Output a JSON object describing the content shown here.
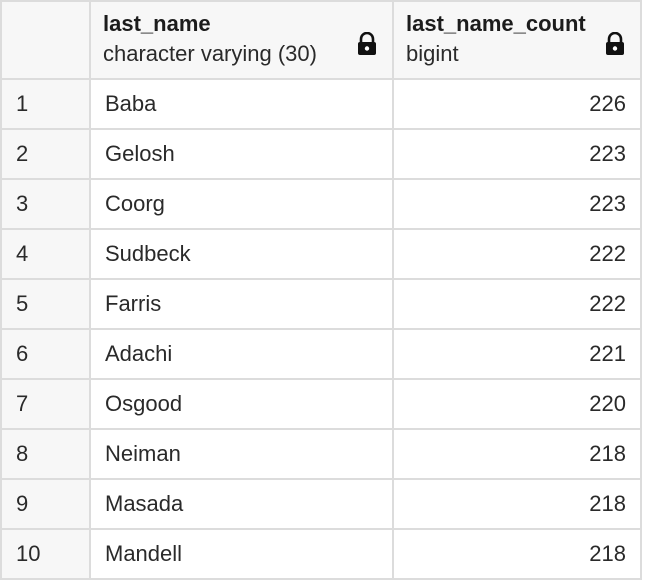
{
  "columns": [
    {
      "name": "last_name",
      "type": "character varying (30)",
      "lock_icon": "lock-icon"
    },
    {
      "name": "last_name_count",
      "type": "bigint",
      "lock_icon": "lock-icon"
    }
  ],
  "rows": [
    {
      "index": "1",
      "last_name": "Baba",
      "count": "226"
    },
    {
      "index": "2",
      "last_name": "Gelosh",
      "count": "223"
    },
    {
      "index": "3",
      "last_name": "Coorg",
      "count": "223"
    },
    {
      "index": "4",
      "last_name": "Sudbeck",
      "count": "222"
    },
    {
      "index": "5",
      "last_name": "Farris",
      "count": "222"
    },
    {
      "index": "6",
      "last_name": "Adachi",
      "count": "221"
    },
    {
      "index": "7",
      "last_name": "Osgood",
      "count": "220"
    },
    {
      "index": "8",
      "last_name": "Neiman",
      "count": "218"
    },
    {
      "index": "9",
      "last_name": "Masada",
      "count": "218"
    },
    {
      "index": "10",
      "last_name": "Mandell",
      "count": "218"
    }
  ],
  "colors": {
    "grid_line": "#dcdcdc",
    "header_bg": "#f7f7f7",
    "text": "#2a2a2a"
  }
}
